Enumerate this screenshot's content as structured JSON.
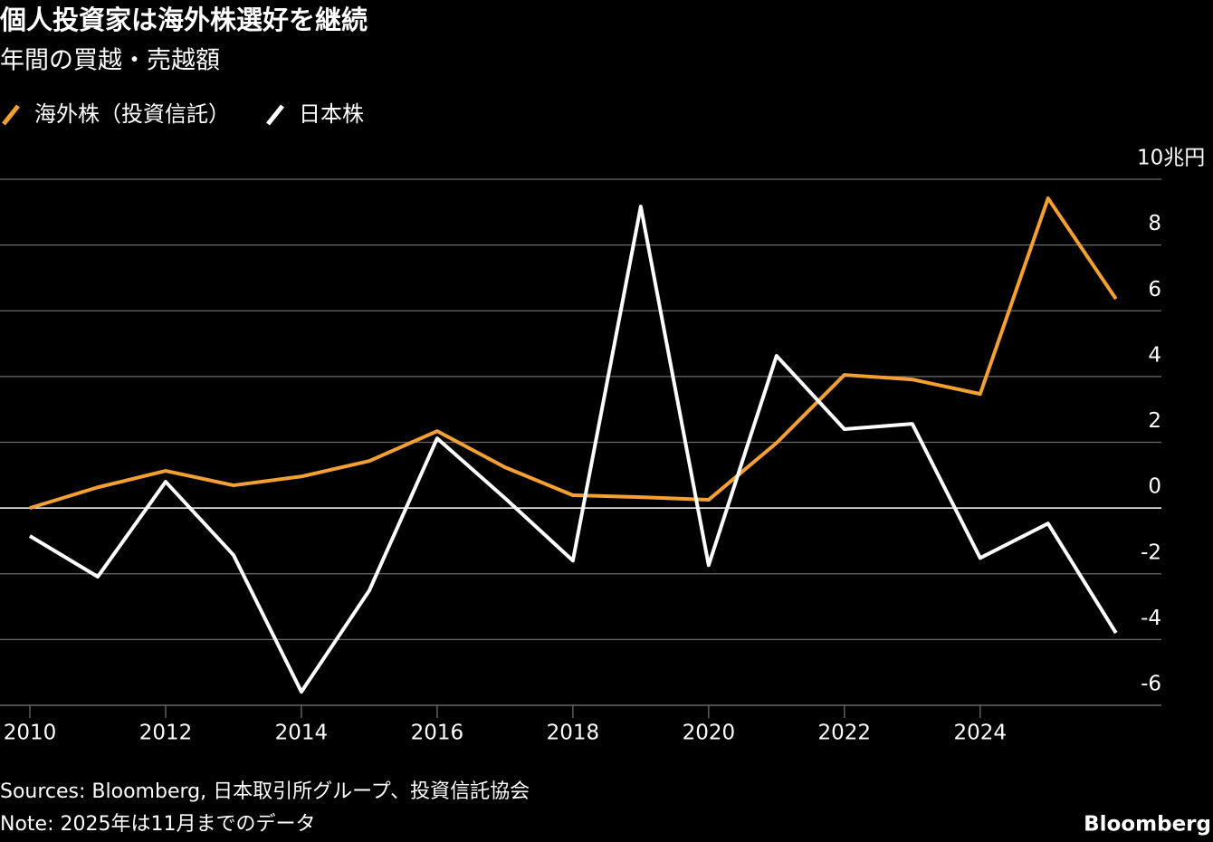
{
  "chart_data": {
    "type": "line",
    "title": "個人投資家は海外株選好を継続",
    "subtitle": "年間の買越・売越額",
    "x": [
      2010,
      2011,
      2012,
      2013,
      2014,
      2015,
      2016,
      2017,
      2018,
      2019,
      2020,
      2021,
      2022,
      2023,
      2024,
      2025,
      2026
    ],
    "series": [
      {
        "name": "海外株（投資信託）",
        "color": "#f5a033",
        "values": [
          0,
          0.63,
          1.13,
          0.69,
          0.96,
          1.43,
          2.34,
          1.24,
          0.39,
          0.33,
          0.25,
          1.98,
          4.05,
          3.91,
          3.47,
          9.42,
          6.36
        ]
      },
      {
        "name": "日本株",
        "color": "#ffffff",
        "values": [
          -0.85,
          -2.09,
          0.8,
          -1.43,
          -5.59,
          -2.51,
          2.12,
          0.3,
          -1.6,
          9.17,
          -1.74,
          4.63,
          2.4,
          2.56,
          -1.52,
          -0.47,
          -3.8
        ]
      }
    ],
    "xlim": [
      2009.56,
      2026.67
    ],
    "xticks": [
      2010,
      2012,
      2014,
      2016,
      2018,
      2020,
      2022,
      2024
    ],
    "ylim": [
      -6,
      10
    ],
    "yticks": [
      -6,
      -4,
      -2,
      0,
      2,
      4,
      6,
      8,
      {
        "value": 10,
        "label": "10兆円"
      }
    ],
    "grid": true,
    "legend": "top-left",
    "source": "Sources: Bloomberg, 日本取引所グループ、投資信託協会",
    "note": "Note: 2025年は11月までのデータ",
    "brand": "Bloomberg"
  }
}
